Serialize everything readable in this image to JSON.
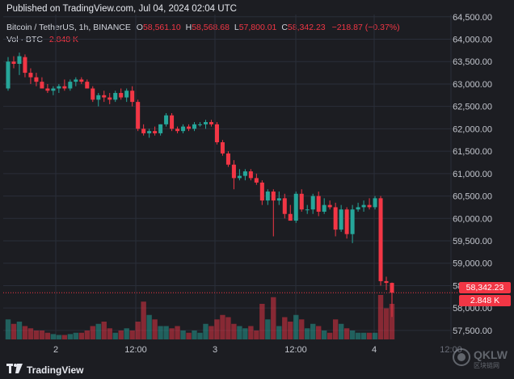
{
  "header": {
    "published": "Published on TradingView.com, Jul 04, 2024 02:04 UTC"
  },
  "legend": {
    "symbol": "Bitcoin / TetherUS, 1h, BINANCE",
    "o_label": "O",
    "o_value": "58,561.10",
    "h_label": "H",
    "h_value": "58,568.68",
    "l_label": "L",
    "l_value": "57,800.01",
    "c_label": "C",
    "c_value": "58,342.23",
    "change": "−218.87 (−0.37%)",
    "vol_label": "Vol · BTC",
    "vol_value": "2.848 K"
  },
  "price_tags": {
    "last_price": "58,342.23",
    "last_volume": "2.848 K"
  },
  "footer": {
    "brand": "TradingView"
  },
  "watermark": {
    "text": "QKLW",
    "sub": "区块链网"
  },
  "colors": {
    "up": "#26a69a",
    "down": "#f23645",
    "background": "#1c1d22",
    "grid": "#2a2e39"
  },
  "chart_data": {
    "type": "candlestick",
    "title": "Bitcoin / TetherUS, 1h, BINANCE",
    "x_tick_labels": [
      "2",
      "12:00",
      "3",
      "12:00",
      "4",
      "12:00"
    ],
    "y_tick_labels": [
      "57,500.00",
      "58,000.00",
      "58,500.00",
      "59,000.00",
      "59,500.00",
      "60,000.00",
      "60,500.00",
      "61,000.00",
      "61,500.00",
      "62,000.00",
      "62,500.00",
      "63,000.00",
      "63,500.00",
      "64,000.00",
      "64,500.00"
    ],
    "ylim": [
      57300,
      64550
    ],
    "grid": true,
    "candles": [
      {
        "o": 62900,
        "h": 63600,
        "l": 62850,
        "c": 63500,
        "v": 0.45
      },
      {
        "o": 63500,
        "h": 63620,
        "l": 63350,
        "c": 63450,
        "v": 0.35
      },
      {
        "o": 63450,
        "h": 63700,
        "l": 63200,
        "c": 63620,
        "v": 0.4
      },
      {
        "o": 63600,
        "h": 63660,
        "l": 63150,
        "c": 63250,
        "v": 0.3
      },
      {
        "o": 63250,
        "h": 63350,
        "l": 63000,
        "c": 63150,
        "v": 0.25
      },
      {
        "o": 63150,
        "h": 63250,
        "l": 62950,
        "c": 63050,
        "v": 0.2
      },
      {
        "o": 63050,
        "h": 63150,
        "l": 62900,
        "c": 62900,
        "v": 0.2
      },
      {
        "o": 62900,
        "h": 63000,
        "l": 62800,
        "c": 62850,
        "v": 0.15
      },
      {
        "o": 62850,
        "h": 62950,
        "l": 62750,
        "c": 62900,
        "v": 0.12
      },
      {
        "o": 62900,
        "h": 63000,
        "l": 62800,
        "c": 62950,
        "v": 0.1
      },
      {
        "o": 62950,
        "h": 63100,
        "l": 62850,
        "c": 62900,
        "v": 0.1
      },
      {
        "o": 62900,
        "h": 63100,
        "l": 62850,
        "c": 63050,
        "v": 0.12
      },
      {
        "o": 63050,
        "h": 63150,
        "l": 62950,
        "c": 63100,
        "v": 0.15
      },
      {
        "o": 63100,
        "h": 63150,
        "l": 63000,
        "c": 63050,
        "v": 0.15
      },
      {
        "o": 63050,
        "h": 63100,
        "l": 62900,
        "c": 62900,
        "v": 0.2
      },
      {
        "o": 62900,
        "h": 62950,
        "l": 62600,
        "c": 62650,
        "v": 0.3
      },
      {
        "o": 62650,
        "h": 62800,
        "l": 62500,
        "c": 62750,
        "v": 0.35
      },
      {
        "o": 62750,
        "h": 62850,
        "l": 62600,
        "c": 62700,
        "v": 0.4
      },
      {
        "o": 62700,
        "h": 62800,
        "l": 62550,
        "c": 62650,
        "v": 0.25
      },
      {
        "o": 62650,
        "h": 62850,
        "l": 62600,
        "c": 62800,
        "v": 0.15
      },
      {
        "o": 62800,
        "h": 62900,
        "l": 62650,
        "c": 62700,
        "v": 0.2
      },
      {
        "o": 62700,
        "h": 62900,
        "l": 62600,
        "c": 62850,
        "v": 0.25
      },
      {
        "o": 62850,
        "h": 62950,
        "l": 62500,
        "c": 62600,
        "v": 0.2
      },
      {
        "o": 62600,
        "h": 62650,
        "l": 61950,
        "c": 62000,
        "v": 0.4
      },
      {
        "o": 62000,
        "h": 62100,
        "l": 61850,
        "c": 61900,
        "v": 0.85
      },
      {
        "o": 61900,
        "h": 62000,
        "l": 61800,
        "c": 61950,
        "v": 0.55
      },
      {
        "o": 61950,
        "h": 62050,
        "l": 61850,
        "c": 61900,
        "v": 0.45
      },
      {
        "o": 61900,
        "h": 62100,
        "l": 61850,
        "c": 62100,
        "v": 0.3
      },
      {
        "o": 62100,
        "h": 62350,
        "l": 62050,
        "c": 62300,
        "v": 0.3
      },
      {
        "o": 62300,
        "h": 62350,
        "l": 61950,
        "c": 62000,
        "v": 0.25
      },
      {
        "o": 62000,
        "h": 62050,
        "l": 61900,
        "c": 61950,
        "v": 0.3
      },
      {
        "o": 61950,
        "h": 62100,
        "l": 61900,
        "c": 62050,
        "v": 0.2
      },
      {
        "o": 62050,
        "h": 62100,
        "l": 61950,
        "c": 62000,
        "v": 0.15
      },
      {
        "o": 62000,
        "h": 62150,
        "l": 61950,
        "c": 62100,
        "v": 0.2
      },
      {
        "o": 62100,
        "h": 62150,
        "l": 62050,
        "c": 62100,
        "v": 0.15
      },
      {
        "o": 62100,
        "h": 62200,
        "l": 62000,
        "c": 62150,
        "v": 0.35
      },
      {
        "o": 62150,
        "h": 62200,
        "l": 62050,
        "c": 62100,
        "v": 0.3
      },
      {
        "o": 62100,
        "h": 62150,
        "l": 61650,
        "c": 61700,
        "v": 0.45
      },
      {
        "o": 61700,
        "h": 61750,
        "l": 61400,
        "c": 61450,
        "v": 0.55
      },
      {
        "o": 61450,
        "h": 61500,
        "l": 61150,
        "c": 61200,
        "v": 0.5
      },
      {
        "o": 61200,
        "h": 61300,
        "l": 60650,
        "c": 60900,
        "v": 0.35
      },
      {
        "o": 60900,
        "h": 61100,
        "l": 60850,
        "c": 60950,
        "v": 0.3
      },
      {
        "o": 60950,
        "h": 61100,
        "l": 60850,
        "c": 61050,
        "v": 0.25
      },
      {
        "o": 61050,
        "h": 61100,
        "l": 60850,
        "c": 60900,
        "v": 0.3
      },
      {
        "o": 60900,
        "h": 61000,
        "l": 60750,
        "c": 60800,
        "v": 0.2
      },
      {
        "o": 60800,
        "h": 60850,
        "l": 60300,
        "c": 60400,
        "v": 0.8
      },
      {
        "o": 60400,
        "h": 60650,
        "l": 60300,
        "c": 60600,
        "v": 0.45
      },
      {
        "o": 60600,
        "h": 60650,
        "l": 59600,
        "c": 60400,
        "v": 0.95
      },
      {
        "o": 60400,
        "h": 60600,
        "l": 60300,
        "c": 60450,
        "v": 0.3
      },
      {
        "o": 60450,
        "h": 60550,
        "l": 60000,
        "c": 60100,
        "v": 0.5
      },
      {
        "o": 60100,
        "h": 60300,
        "l": 59950,
        "c": 59950,
        "v": 0.4
      },
      {
        "o": 59950,
        "h": 60600,
        "l": 59900,
        "c": 60550,
        "v": 0.55
      },
      {
        "o": 60550,
        "h": 60650,
        "l": 60150,
        "c": 60200,
        "v": 0.45
      },
      {
        "o": 60200,
        "h": 60300,
        "l": 60100,
        "c": 60200,
        "v": 0.25
      },
      {
        "o": 60200,
        "h": 60550,
        "l": 60100,
        "c": 60500,
        "v": 0.35
      },
      {
        "o": 60500,
        "h": 60600,
        "l": 60050,
        "c": 60150,
        "v": 0.3
      },
      {
        "o": 60150,
        "h": 60450,
        "l": 60100,
        "c": 60300,
        "v": 0.2
      },
      {
        "o": 60300,
        "h": 60400,
        "l": 60200,
        "c": 60250,
        "v": 0.15
      },
      {
        "o": 60250,
        "h": 60350,
        "l": 59600,
        "c": 59750,
        "v": 0.45
      },
      {
        "o": 59750,
        "h": 60300,
        "l": 59700,
        "c": 60200,
        "v": 0.35
      },
      {
        "o": 60200,
        "h": 60250,
        "l": 59550,
        "c": 59650,
        "v": 0.25
      },
      {
        "o": 59650,
        "h": 60300,
        "l": 59450,
        "c": 60200,
        "v": 0.2
      },
      {
        "o": 60200,
        "h": 60350,
        "l": 60150,
        "c": 60250,
        "v": 0.15
      },
      {
        "o": 60250,
        "h": 60400,
        "l": 60150,
        "c": 60300,
        "v": 0.15
      },
      {
        "o": 60300,
        "h": 60450,
        "l": 60200,
        "c": 60250,
        "v": 0.15
      },
      {
        "o": 60250,
        "h": 60500,
        "l": 60200,
        "c": 60450,
        "v": 0.15
      },
      {
        "o": 60450,
        "h": 60500,
        "l": 58500,
        "c": 58600,
        "v": 1.0
      },
      {
        "o": 58600,
        "h": 58700,
        "l": 58400,
        "c": 58561.1,
        "v": 0.7
      },
      {
        "o": 58561.1,
        "h": 58568.68,
        "l": 57800.01,
        "c": 58342.23,
        "v": 0.8
      }
    ]
  }
}
